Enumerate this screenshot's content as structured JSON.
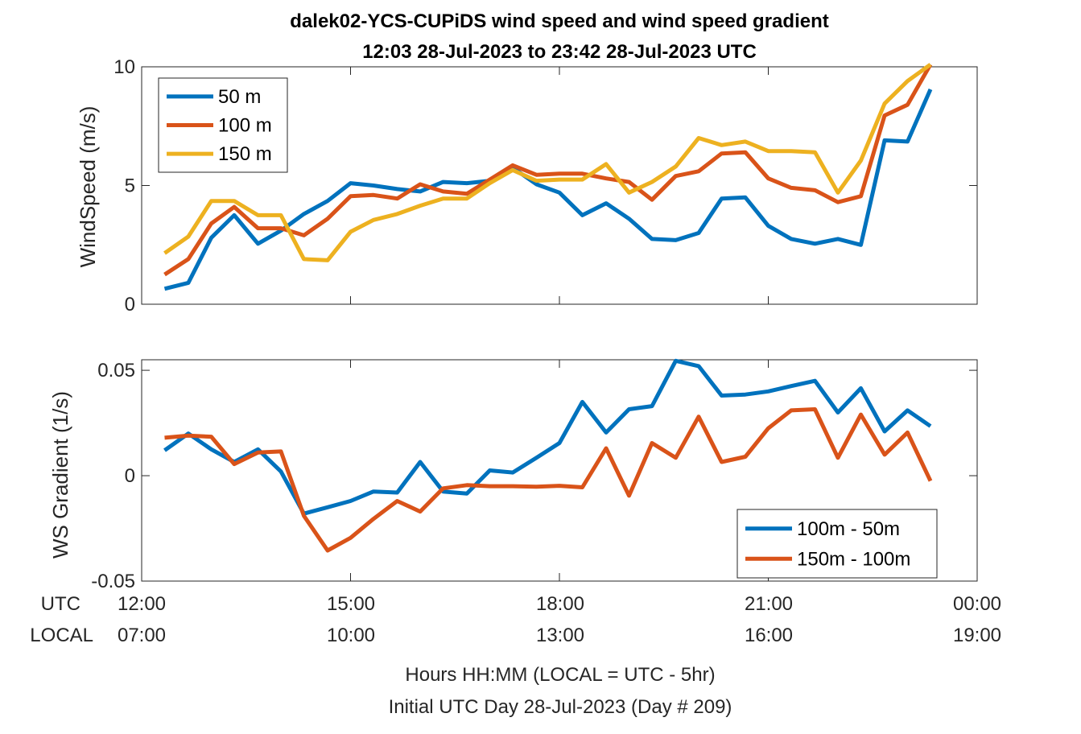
{
  "title_line1": "dalek02-YCS-CUPiDS  wind speed and wind speed gradient",
  "title_line2": "12:03 28-Jul-2023 to 23:42 28-Jul-2023  UTC",
  "xaxis": {
    "row_label_utc": "UTC",
    "row_label_local": "LOCAL",
    "utc_ticks": [
      "12:00",
      "15:00",
      "18:00",
      "21:00",
      "00:00"
    ],
    "local_ticks": [
      "07:00",
      "10:00",
      "13:00",
      "16:00",
      "19:00"
    ],
    "xlabel_line1": "Hours HH:MM  (LOCAL = UTC - 5hr)",
    "xlabel_line2": "Initial UTC Day 28-Jul-2023 (Day # 209)"
  },
  "colors": {
    "blue": "#0072BD",
    "orange": "#D95319",
    "yellow": "#EDB120"
  },
  "chart_data": [
    {
      "type": "line",
      "ylabel": "WindSpeed (m/s)",
      "ylim": [
        0,
        10
      ],
      "yticks": [
        "0",
        "5",
        "10"
      ],
      "xlim": [
        12,
        24
      ],
      "legend_position": "top-left",
      "x": [
        12.33,
        12.67,
        13.0,
        13.33,
        13.67,
        14.0,
        14.33,
        14.67,
        15.0,
        15.33,
        15.67,
        16.0,
        16.33,
        16.67,
        17.0,
        17.33,
        17.67,
        18.0,
        18.33,
        18.67,
        19.0,
        19.33,
        19.67,
        20.0,
        20.33,
        20.67,
        21.0,
        21.33,
        21.67,
        22.0,
        22.33,
        22.67,
        23.0,
        23.33,
        23.67
      ],
      "series": [
        {
          "name": "50 m",
          "color": "#0072BD",
          "values": [
            0.65,
            0.9,
            2.8,
            3.75,
            2.55,
            3.1,
            3.8,
            4.35,
            5.1,
            5.0,
            4.85,
            4.75,
            5.15,
            5.1,
            5.2,
            5.75,
            5.05,
            4.7,
            3.75,
            4.25,
            3.6,
            2.75,
            2.7,
            3.0,
            4.45,
            4.5,
            3.3,
            2.75,
            2.55,
            2.75,
            2.5,
            6.9,
            6.85,
            9.05,
            null
          ]
        },
        {
          "name": "100 m",
          "color": "#D95319",
          "values": [
            1.25,
            1.9,
            3.4,
            4.1,
            3.2,
            3.2,
            2.9,
            3.6,
            4.55,
            4.6,
            4.45,
            5.05,
            4.75,
            4.65,
            5.25,
            5.85,
            5.45,
            5.5,
            5.5,
            5.3,
            5.15,
            4.4,
            5.4,
            5.6,
            6.35,
            6.4,
            5.3,
            4.9,
            4.8,
            4.3,
            4.55,
            7.95,
            8.4,
            10.1,
            null
          ]
        },
        {
          "name": "150 m",
          "color": "#EDB120",
          "values": [
            2.15,
            2.85,
            4.35,
            4.35,
            3.75,
            3.75,
            1.9,
            1.85,
            3.05,
            3.55,
            3.8,
            4.15,
            4.45,
            4.45,
            5.1,
            5.65,
            5.2,
            5.25,
            5.25,
            5.9,
            4.7,
            5.15,
            5.8,
            7.0,
            6.7,
            6.85,
            6.45,
            6.45,
            6.4,
            4.7,
            6.05,
            8.45,
            9.4,
            10.1,
            null
          ]
        }
      ]
    },
    {
      "type": "line",
      "ylabel": "WS Gradient (1/s)",
      "ylim": [
        -0.05,
        0.055
      ],
      "yticks": [
        "-0.05",
        "0",
        "0.05"
      ],
      "xlim": [
        12,
        24
      ],
      "legend_position": "bottom-right",
      "x": [
        12.33,
        12.67,
        13.0,
        13.33,
        13.67,
        14.0,
        14.33,
        14.67,
        15.0,
        15.33,
        15.67,
        16.0,
        16.33,
        16.67,
        17.0,
        17.33,
        17.67,
        18.0,
        18.33,
        18.67,
        19.0,
        19.33,
        19.67,
        20.0,
        20.33,
        20.67,
        21.0,
        21.33,
        21.67,
        22.0,
        22.33,
        22.67,
        23.0,
        23.33,
        23.67
      ],
      "series": [
        {
          "name": "100m - 50m",
          "color": "#0072BD",
          "values": [
            0.012,
            0.02,
            0.0125,
            0.0065,
            0.0125,
            0.002,
            -0.018,
            -0.015,
            -0.012,
            -0.0075,
            -0.008,
            0.0065,
            -0.0075,
            -0.0085,
            0.0025,
            0.0015,
            0.0085,
            0.0155,
            0.035,
            0.0205,
            0.0315,
            0.033,
            0.0545,
            0.052,
            0.038,
            0.0385,
            0.04,
            0.0425,
            0.045,
            0.03,
            0.0415,
            0.021,
            0.031,
            0.0235,
            null
          ]
        },
        {
          "name": "150m - 100m",
          "color": "#D95319",
          "values": [
            0.018,
            0.019,
            0.0185,
            0.0055,
            0.011,
            0.0115,
            -0.019,
            -0.0355,
            -0.0295,
            -0.0205,
            -0.012,
            -0.017,
            -0.006,
            -0.0045,
            -0.005,
            -0.005,
            -0.0052,
            -0.0048,
            -0.0055,
            0.013,
            -0.0095,
            0.0155,
            0.0085,
            0.028,
            0.0065,
            0.009,
            0.0225,
            0.031,
            0.0315,
            0.0085,
            0.029,
            0.01,
            0.0205,
            -0.0025,
            null
          ]
        }
      ]
    }
  ]
}
